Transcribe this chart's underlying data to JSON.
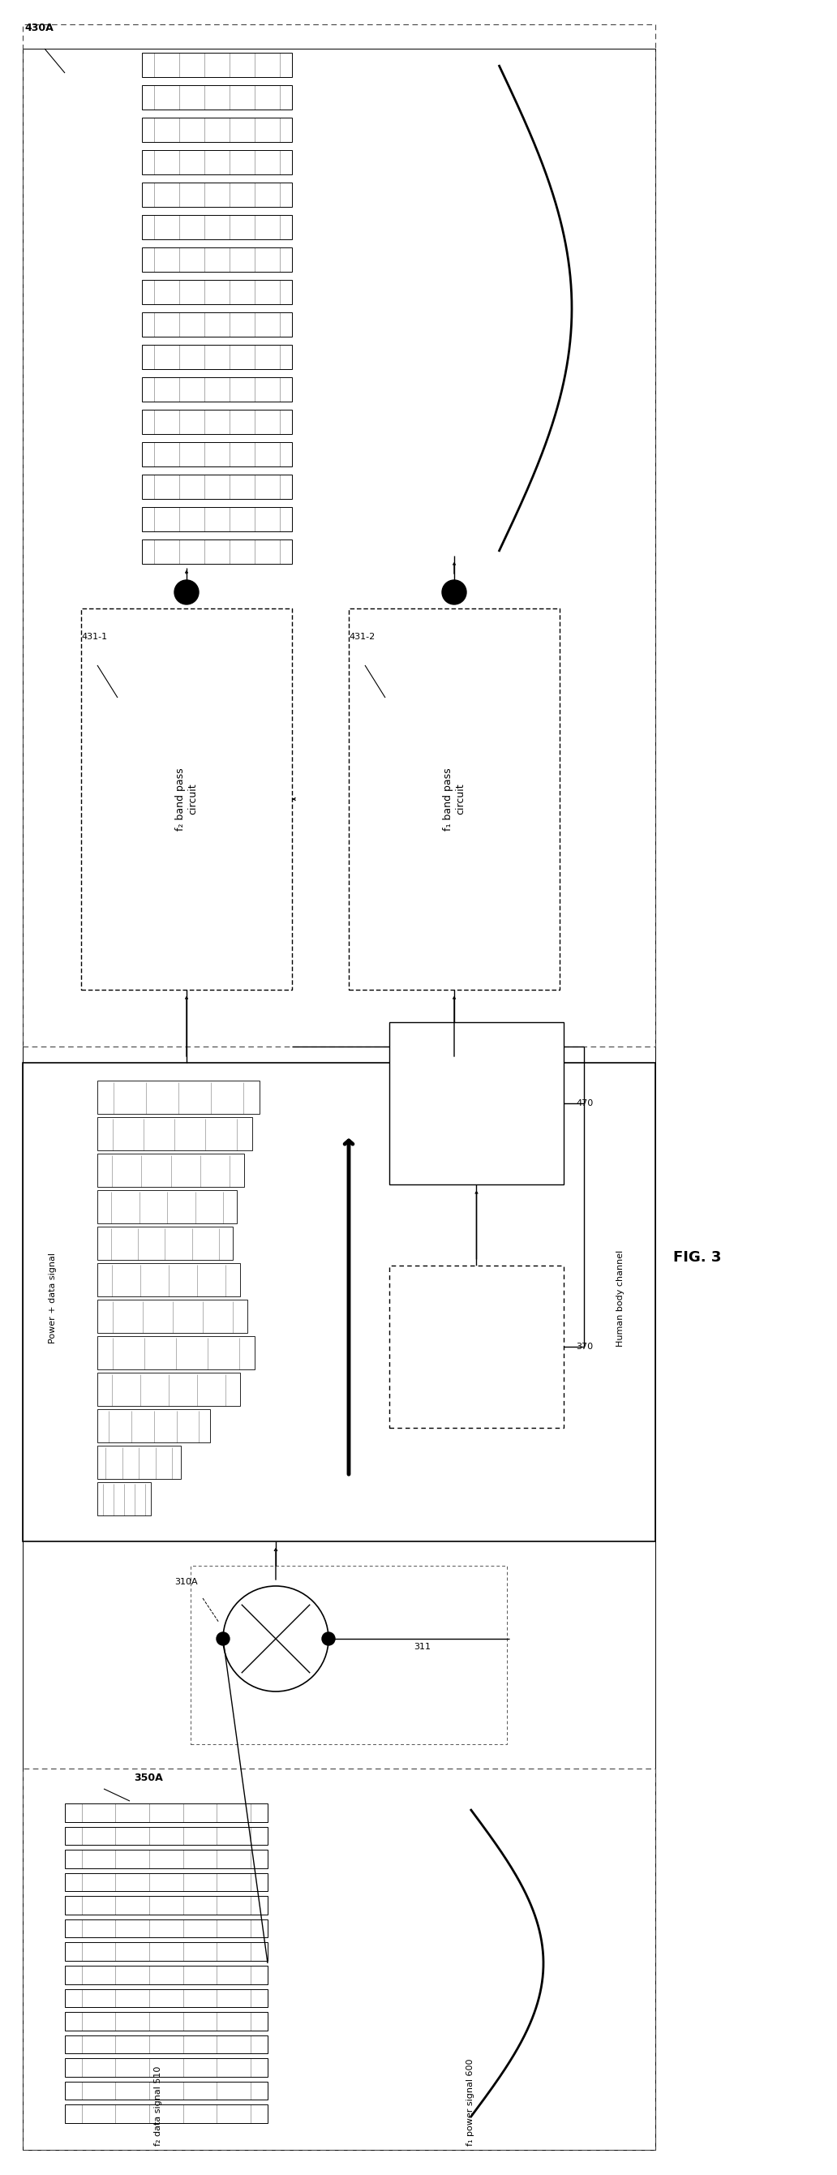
{
  "fig_title": "FIG. 3",
  "label_350A": "350A",
  "label_430A": "430A",
  "label_431_1": "431-1",
  "label_431_2": "431-2",
  "label_310A": "310A",
  "label_311": "311",
  "label_370": "370",
  "label_470": "470",
  "label_power_data": "Power + data signal",
  "label_hbc": "Human body channel",
  "label_f2_data": "f₂ data signal 510",
  "label_f1_power": "f₁ power signal 600",
  "label_f2_bpc": "f₂ band pass\ncircuit",
  "label_f1_bpc": "f₁ band pass\ncircuit",
  "outer_border_lw": 0.8,
  "dashed_lw": 0.8,
  "line_lw": 1.0,
  "fig_w": 10.32,
  "fig_h": 26.81
}
